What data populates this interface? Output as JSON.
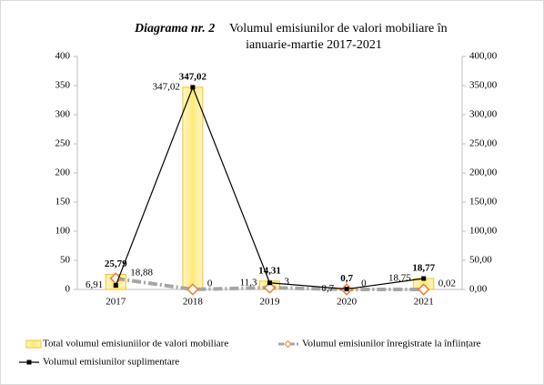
{
  "chart_data": {
    "type": "bar_line",
    "title_prefix": "Diagrama nr. 2",
    "title_lines": [
      "Volumul emisiunilor de valori mobiliare în",
      "ianuarie-martie 2017-2021"
    ],
    "categories": [
      "2017",
      "2018",
      "2019",
      "2020",
      "2021"
    ],
    "series": [
      {
        "name": "Total volumul emisiuniilor de valori mobiliare",
        "type": "bar",
        "color": "#f5c518",
        "values": [
          25.79,
          347.02,
          14.31,
          0.7,
          18.77
        ],
        "value_labels": [
          "25,79",
          "347,02",
          "14,31",
          "0,7",
          "18,77"
        ]
      },
      {
        "name": "Volumul emisiunilor înregistrate la înființare",
        "type": "line",
        "axis": "y2",
        "color": "#a6a6a6",
        "marker_color": "#ed7d31",
        "values": [
          18.88,
          0,
          3,
          0,
          0.02
        ],
        "value_labels": [
          "18,88",
          "0",
          "3",
          "0",
          "0,02"
        ]
      },
      {
        "name": "Volumul emisiunilor suplimentare",
        "type": "line",
        "axis": "y2",
        "color": "#000000",
        "values": [
          6.91,
          347.02,
          11.3,
          0.7,
          18.75
        ],
        "value_labels": [
          "6,91",
          "347,02",
          "11,3",
          "0,7",
          "18,75"
        ]
      }
    ],
    "ylim": [
      0,
      400
    ],
    "yticks": [
      0,
      50,
      100,
      150,
      200,
      250,
      300,
      350,
      400
    ],
    "y2lim": [
      0,
      400
    ],
    "y2ticks": [
      {
        "value": 0,
        "label": "0,00"
      },
      {
        "value": 50,
        "label": "50,00"
      },
      {
        "value": 100,
        "label": "100,00"
      },
      {
        "value": 150,
        "label": "150,00"
      },
      {
        "value": 200,
        "label": "200,00"
      },
      {
        "value": 250,
        "label": "250,00"
      },
      {
        "value": 300,
        "label": "300,00"
      },
      {
        "value": 350,
        "label": "350,00"
      },
      {
        "value": 400,
        "label": "400,00"
      }
    ],
    "grid": false,
    "legend": "bottom"
  }
}
